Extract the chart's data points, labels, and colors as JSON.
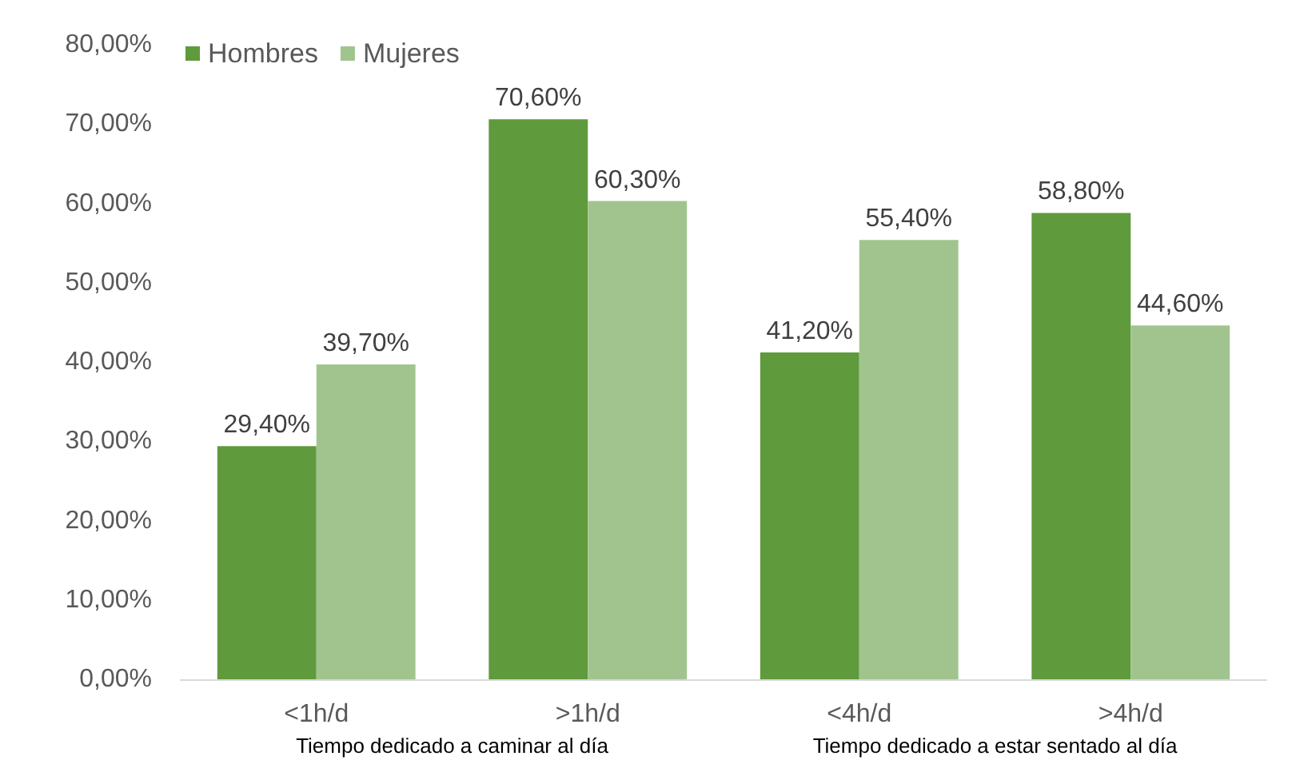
{
  "chart_data": {
    "type": "bar",
    "categories": [
      "<1h/d",
      ">1h/d",
      "<4h/d",
      ">4h/d"
    ],
    "series": [
      {
        "name": "Hombres",
        "color": "#5f9a3c",
        "values": [
          29.4,
          70.6,
          41.2,
          58.8
        ],
        "value_labels": [
          "29,40%",
          "70,60%",
          "41,20%",
          "58,80%"
        ]
      },
      {
        "name": "Mujeres",
        "color": "#a1c48f",
        "values": [
          39.7,
          60.3,
          55.4,
          44.6
        ],
        "value_labels": [
          "39,70%",
          "60,30%",
          "55,40%",
          "44,60%"
        ]
      }
    ],
    "ylim": [
      0,
      80
    ],
    "yticks": [
      {
        "value": 0,
        "label": "0,00%"
      },
      {
        "value": 10,
        "label": "10,00%"
      },
      {
        "value": 20,
        "label": "20,00%"
      },
      {
        "value": 30,
        "label": "30,00%"
      },
      {
        "value": 40,
        "label": "40,00%"
      },
      {
        "value": 50,
        "label": "50,00%"
      },
      {
        "value": 60,
        "label": "60,00%"
      },
      {
        "value": 70,
        "label": "70,00%"
      },
      {
        "value": 80,
        "label": "80,00%"
      }
    ],
    "annotations": [
      "Tiempo dedicado a caminar al día",
      "Tiempo dedicado a estar sentado al día"
    ],
    "grid": false,
    "legend": "top left"
  }
}
